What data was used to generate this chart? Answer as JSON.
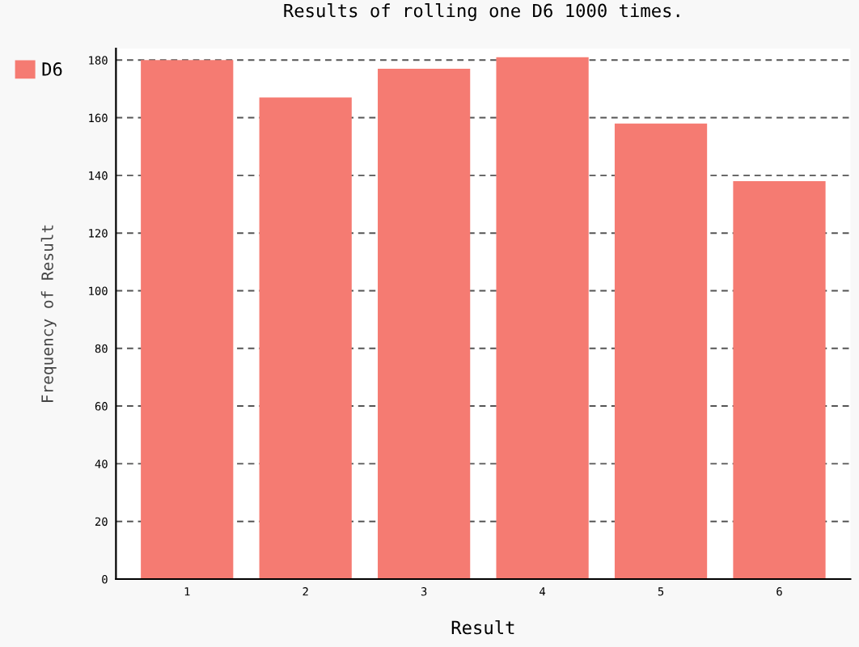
{
  "chart_data": {
    "type": "bar",
    "title": "Results of rolling one D6 1000 times.",
    "xlabel": "Result",
    "ylabel": "Frequency of Result",
    "categories": [
      "1",
      "2",
      "3",
      "4",
      "5",
      "6"
    ],
    "series": [
      {
        "name": "D6",
        "color": "#f57b72",
        "values": [
          180,
          167,
          177,
          181,
          158,
          138
        ]
      }
    ],
    "ylim": [
      0,
      184
    ],
    "yticks": [
      0,
      20,
      40,
      60,
      80,
      100,
      120,
      140,
      160,
      180
    ],
    "grid": "y",
    "legend": "top left"
  }
}
